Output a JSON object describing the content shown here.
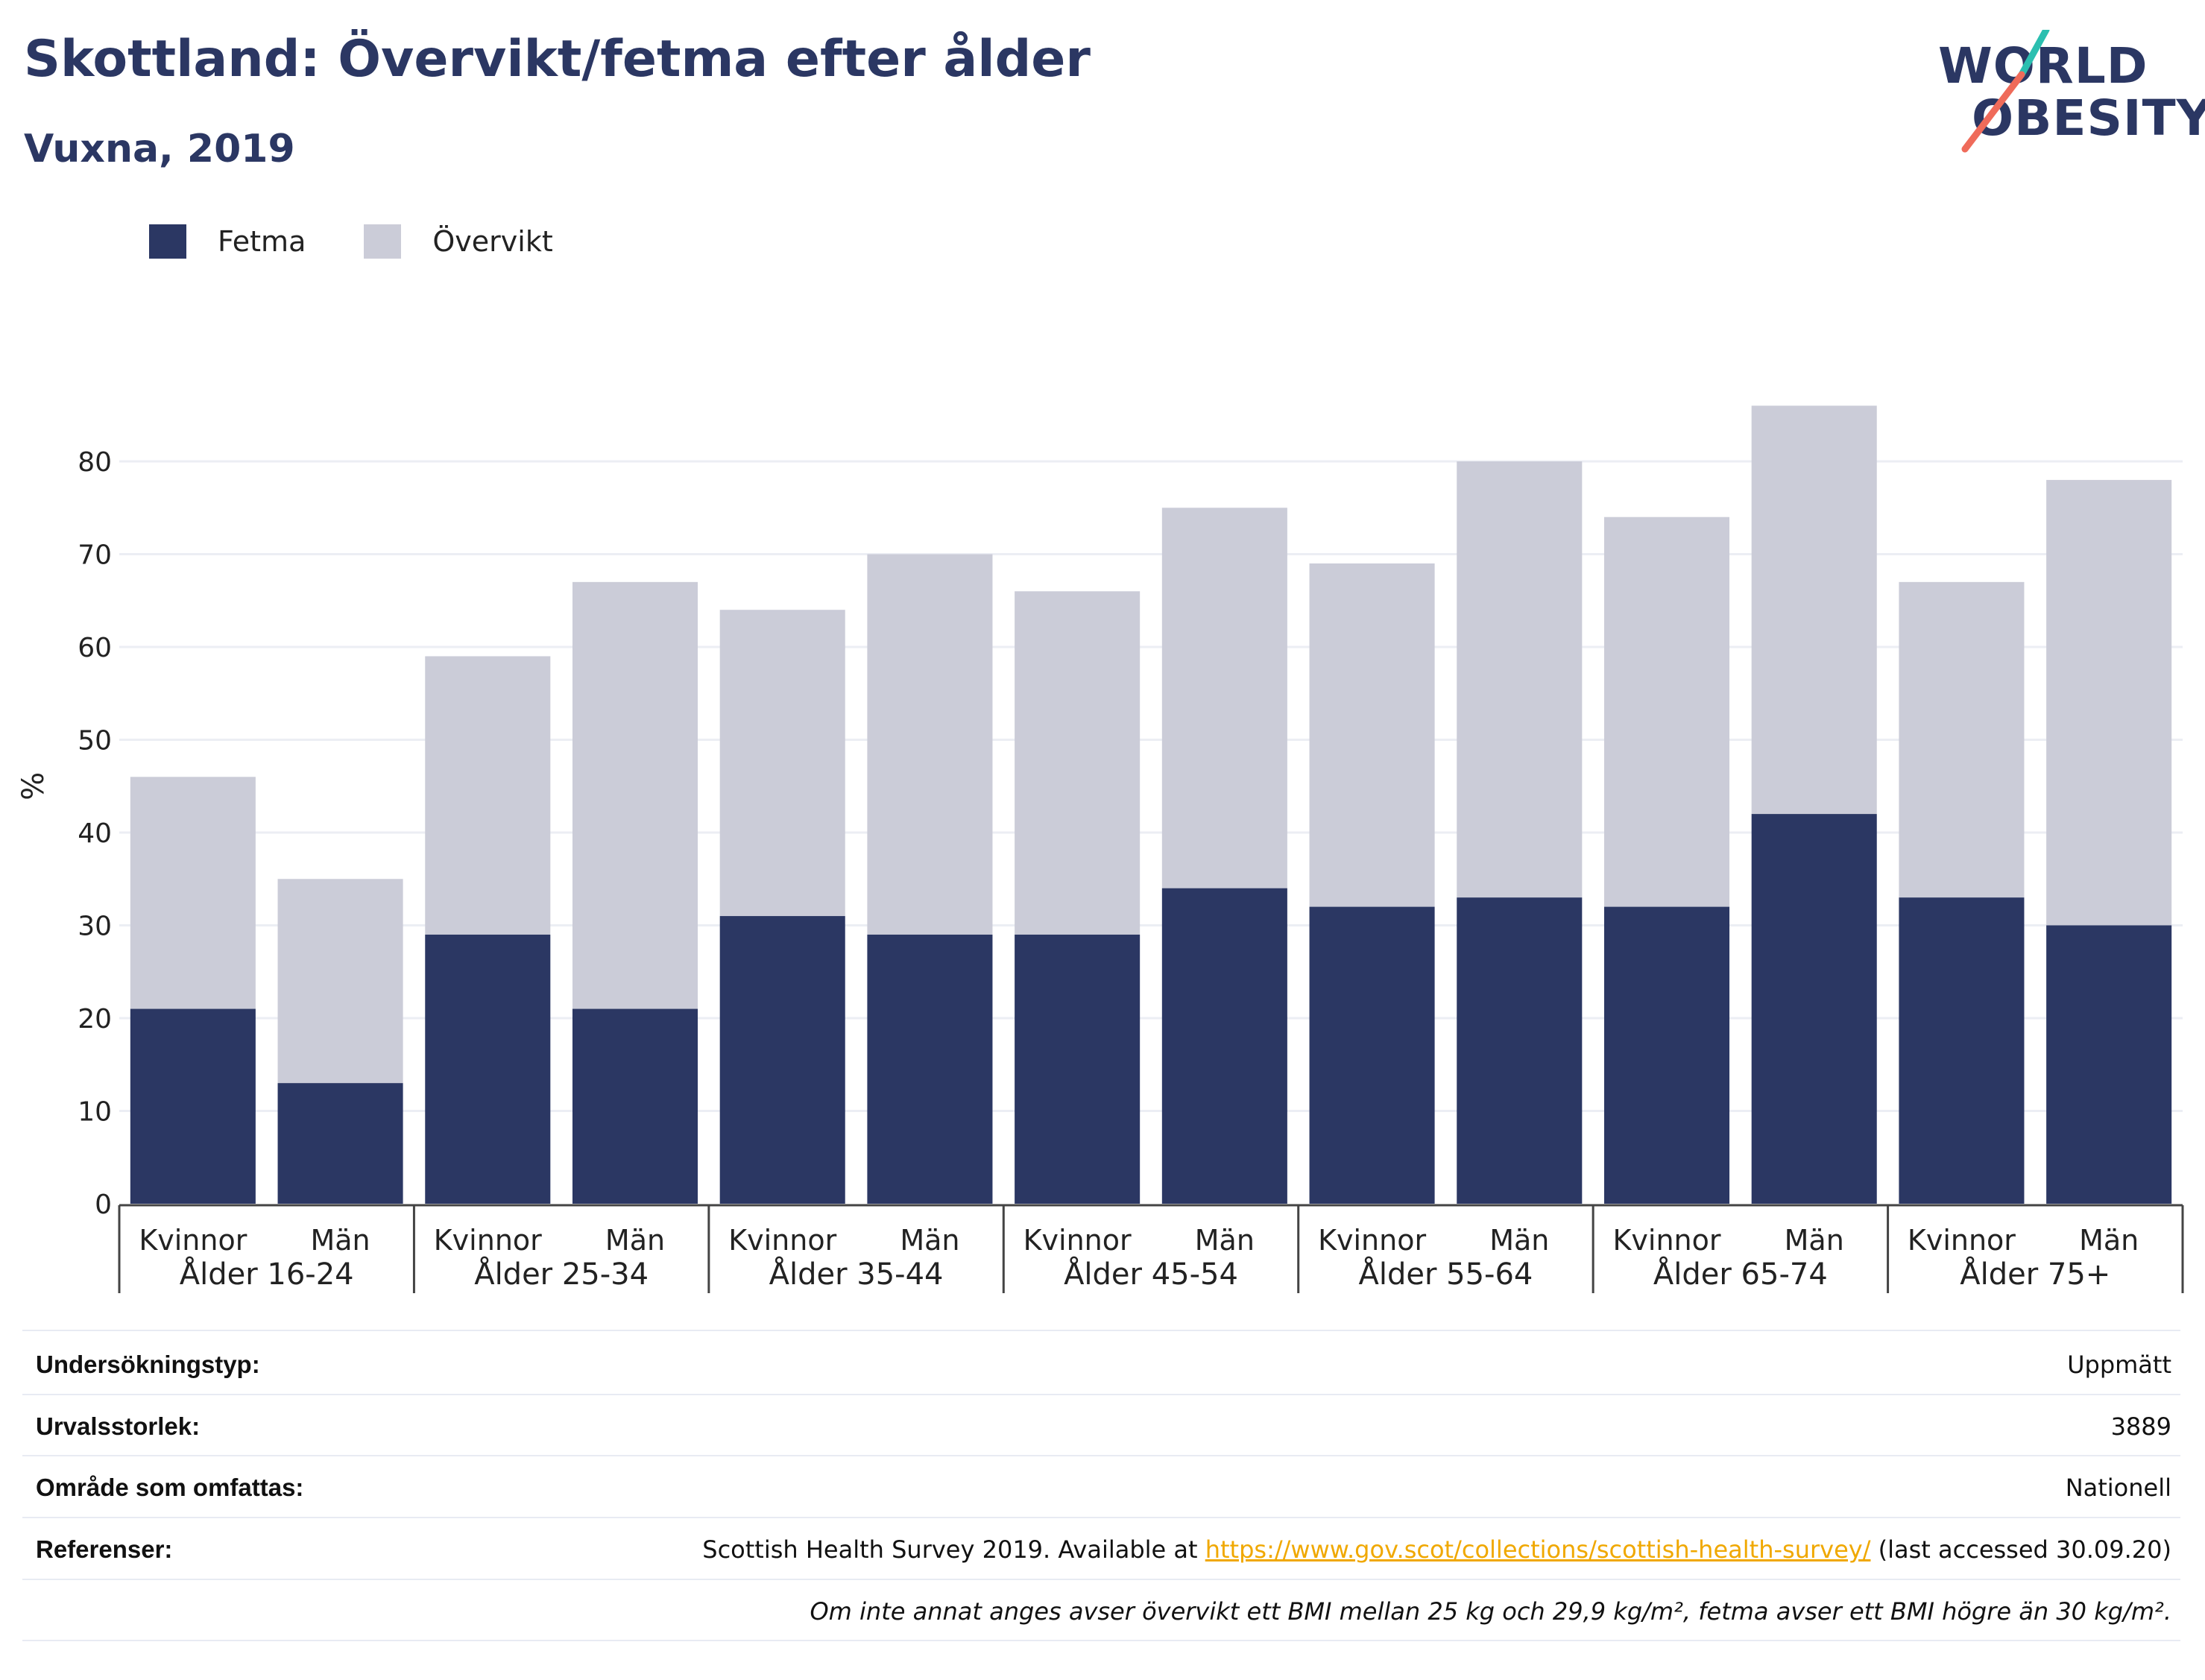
{
  "header": {
    "title": "Skottland: Övervikt/fetma efter ålder",
    "subtitle": "Vuxna, 2019"
  },
  "logo": {
    "line1": "WORLD",
    "line2": "OBESITY"
  },
  "colors": {
    "fetma": "#2b3763",
    "overvikt": "#cbccd8",
    "accent_teal": "#2bbfb0",
    "accent_coral": "#ef6b5a",
    "link": "#f0a800"
  },
  "chart_data": {
    "type": "bar",
    "stacked": true,
    "ylabel": "%",
    "ylim": [
      0,
      90
    ],
    "yticks": [
      0,
      10,
      20,
      30,
      40,
      50,
      60,
      70,
      80
    ],
    "grid": true,
    "legend_position": "top-left",
    "groups": [
      "Ålder 16-24",
      "Ålder 25-34",
      "Ålder 35-44",
      "Ålder 45-54",
      "Ålder 55-64",
      "Ålder 65-74",
      "Ålder 75+"
    ],
    "subcategories": [
      "Kvinnor",
      "Män"
    ],
    "series": [
      {
        "name": "Fetma",
        "values": [
          21,
          13,
          29,
          21,
          31,
          29,
          29,
          34,
          32,
          33,
          32,
          42,
          33,
          30
        ]
      },
      {
        "name": "Övervikt",
        "values": [
          25,
          22,
          30,
          46,
          33,
          41,
          37,
          41,
          37,
          47,
          42,
          44,
          34,
          48
        ]
      }
    ]
  },
  "meta": {
    "rows": [
      {
        "label": "Undersökningstyp:",
        "value": "Uppmätt"
      },
      {
        "label": "Urvalsstorlek:",
        "value": "3889"
      },
      {
        "label": "Område som omfattas:",
        "value": "Nationell"
      }
    ],
    "references": {
      "label": "Referenser:",
      "prefix": "Scottish Health Survey 2019. Available at ",
      "link": "https://www.gov.scot/collections/scottish-health-survey/",
      "suffix": " (last accessed 30.09.20)"
    },
    "note": "Om inte annat anges avser övervikt ett BMI mellan 25 kg och 29,9 kg/m², fetma avser ett BMI högre än 30 kg/m²."
  }
}
